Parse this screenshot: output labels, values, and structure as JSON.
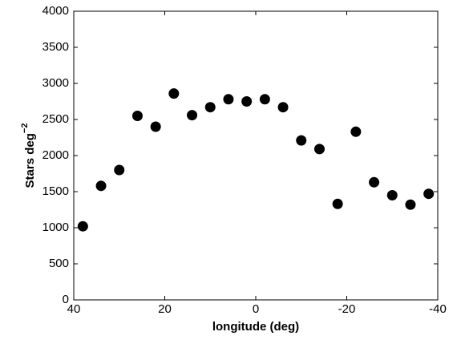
{
  "chart_data": {
    "type": "scatter",
    "xlabel": "longitude (deg)",
    "ylabel": "Stars deg",
    "ylabel_superscript": "−2",
    "x": [
      38,
      34,
      30,
      26,
      22,
      18,
      14,
      10,
      6,
      2,
      -2,
      -6,
      -10,
      -14,
      -18,
      -22,
      -26,
      -30,
      -34,
      -38
    ],
    "values": [
      1020,
      1580,
      1800,
      2550,
      2400,
      2860,
      2560,
      2670,
      2780,
      2750,
      2780,
      2670,
      2210,
      2090,
      1330,
      2330,
      1630,
      1450,
      1320,
      1470
    ],
    "color": "#000000",
    "xlim": [
      40,
      -40
    ],
    "xticks": [
      40,
      20,
      0,
      -20,
      -40
    ],
    "ylim": [
      0,
      4000
    ],
    "yticks": [
      0,
      500,
      1000,
      1500,
      2000,
      2500,
      3000,
      3500,
      4000
    ],
    "grid": false
  }
}
